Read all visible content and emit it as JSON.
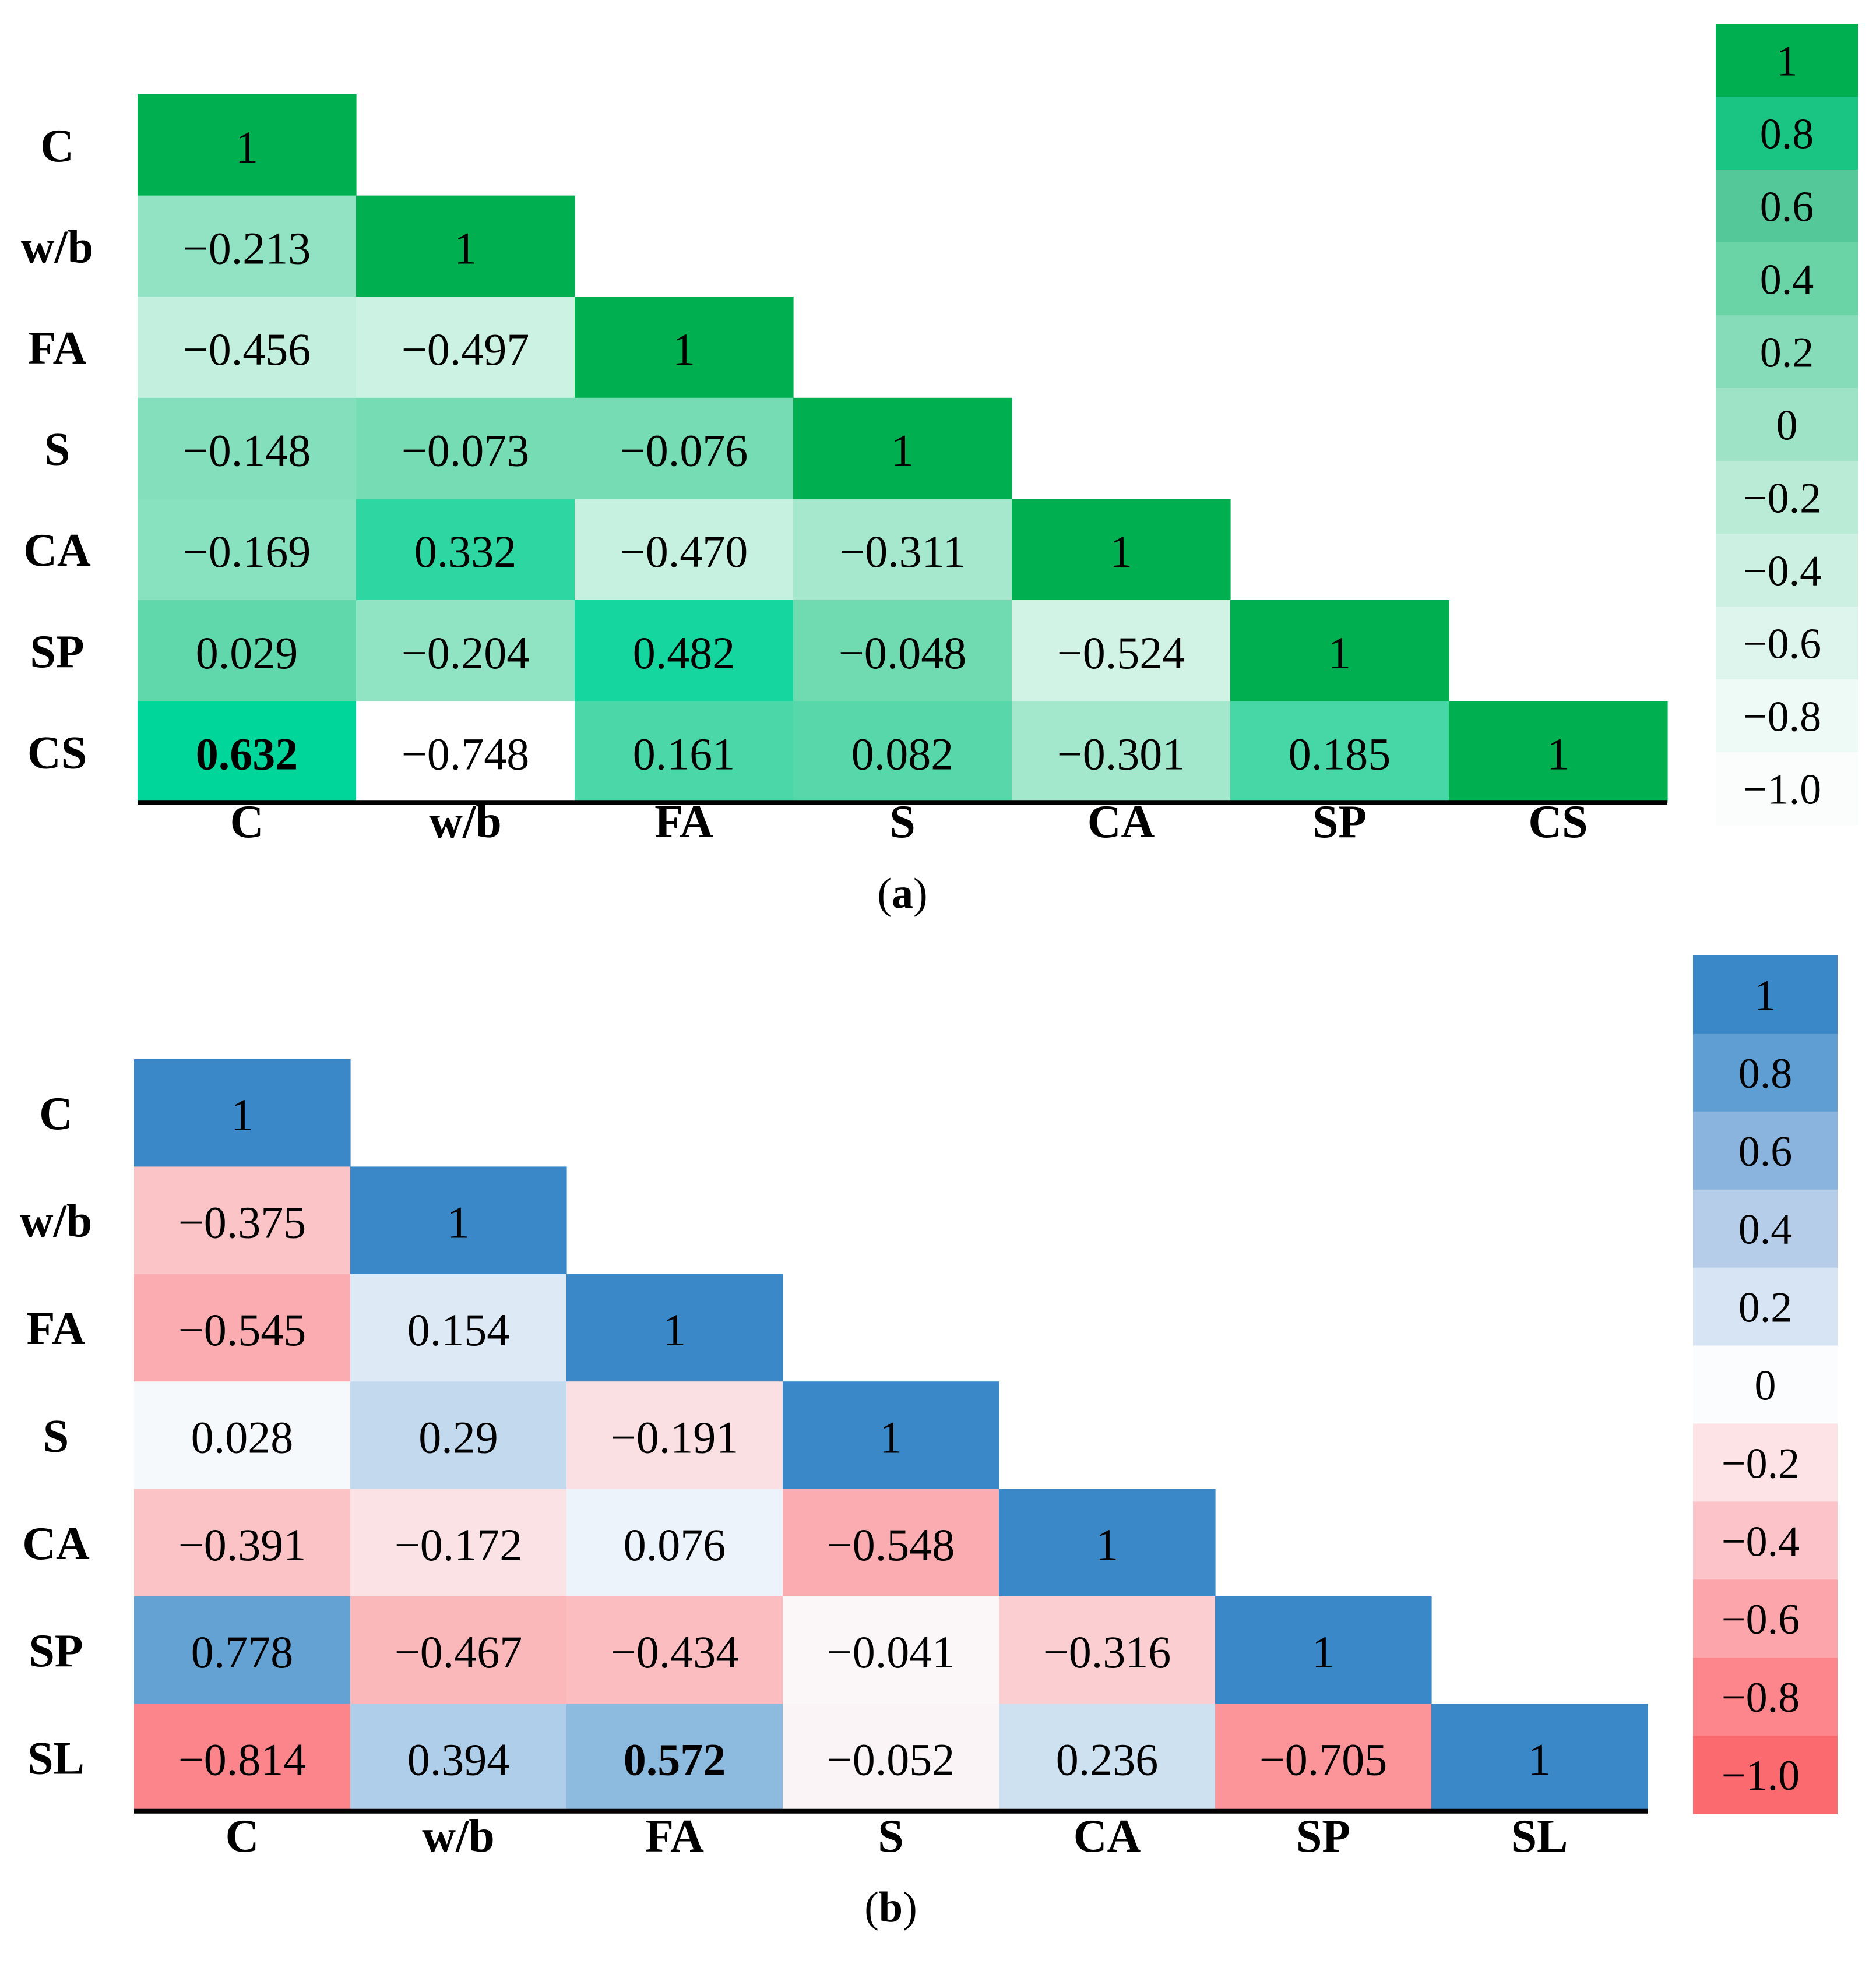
{
  "chart_data": [
    {
      "type": "heatmap",
      "panel_label": "(a)",
      "panel_letter": "a",
      "variables": [
        "C",
        "w/b",
        "FA",
        "S",
        "CA",
        "SP",
        "CS"
      ],
      "matrix": [
        [
          "1"
        ],
        [
          "−0.213",
          "1"
        ],
        [
          "−0.456",
          "−0.497",
          "1"
        ],
        [
          "−0.148",
          "−0.073",
          "−0.076",
          "1"
        ],
        [
          "−0.169",
          "0.332",
          "−0.470",
          "−0.311",
          "1"
        ],
        [
          "0.029",
          "−0.204",
          "0.482",
          "−0.048",
          "−0.524",
          "1"
        ],
        [
          "0.632",
          "−0.748",
          "0.161",
          "0.082",
          "−0.301",
          "0.185",
          "1"
        ]
      ],
      "bold_cells": [
        [
          6,
          0
        ]
      ],
      "colorbar": {
        "labels": [
          "1",
          "0.8",
          "0.6",
          "0.4",
          "0.2",
          "0",
          "−0.2",
          "−0.4",
          "−0.6",
          "−0.8",
          "−1.0"
        ],
        "colors": [
          "#00b050",
          "#1ac483",
          "#54c898",
          "#6ad4a6",
          "#86dcb8",
          "#9fe3c6",
          "#b9ebd6",
          "#ccf1e2",
          "#ddf5ec",
          "#eefaf5",
          "#fafdfb"
        ]
      },
      "colors": {
        "diag": "#00b050",
        "pos_max": "#00d59a",
        "neg_max": "#ffffff",
        "mid": "#66d8ac"
      },
      "value_range": [
        -0.75,
        0.6
      ]
    },
    {
      "type": "heatmap",
      "panel_label": "(b)",
      "panel_letter": "b",
      "variables": [
        "C",
        "w/b",
        "FA",
        "S",
        "CA",
        "SP",
        "SL"
      ],
      "matrix": [
        [
          "1"
        ],
        [
          "−0.375",
          "1"
        ],
        [
          "−0.545",
          "0.154",
          "1"
        ],
        [
          "0.028",
          "0.29",
          "−0.191",
          "1"
        ],
        [
          "−0.391",
          "−0.172",
          "0.076",
          "−0.548",
          "1"
        ],
        [
          "0.778",
          "−0.467",
          "−0.434",
          "−0.041",
          "−0.316",
          "1"
        ],
        [
          "−0.814",
          "0.394",
          "0.572",
          "−0.052",
          "0.236",
          "−0.705",
          "1"
        ]
      ],
      "bold_cells": [
        [
          6,
          2
        ]
      ],
      "colorbar": {
        "labels": [
          "1",
          "0.8",
          "0.6",
          "0.4",
          "0.2",
          "0",
          "−0.2",
          "−0.4",
          "−0.6",
          "−0.8",
          "−1.0"
        ],
        "colors": [
          "#3a88c8",
          "#5f9ed3",
          "#8ab4de",
          "#b5cde8",
          "#d7e4f3",
          "#fbfcfe",
          "#fde3e5",
          "#fcc4c8",
          "#fca5aa",
          "#fc868b",
          "#fb6a6f"
        ]
      },
      "colors": {
        "diag": "#3a88c8",
        "pos_max": "#3a88c8",
        "neg_max": "#fb6a6f",
        "mid": "#fbfcfe"
      },
      "value_range": [
        -1.0,
        1.0
      ]
    }
  ]
}
